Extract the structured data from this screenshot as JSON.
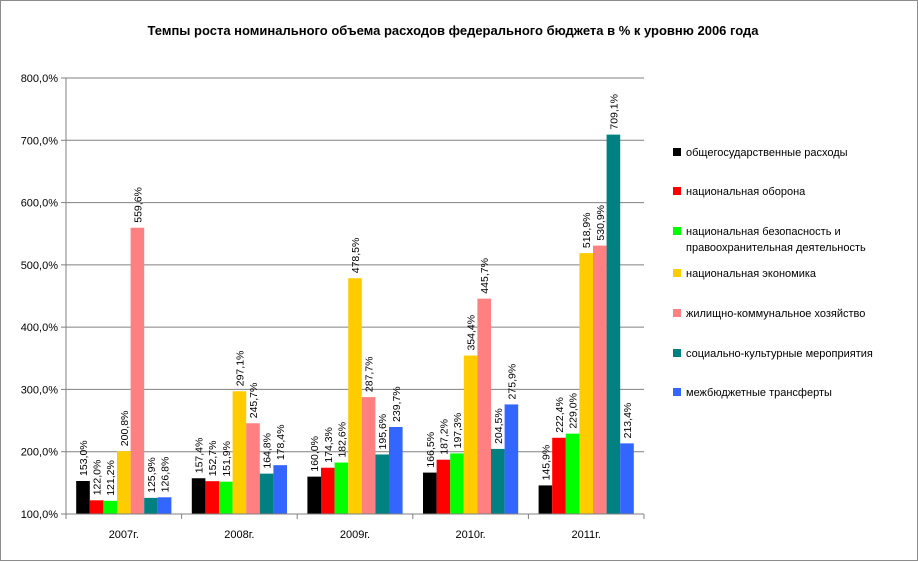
{
  "chart_data": {
    "type": "bar",
    "title": "Темпы роста номинального объема расходов федерального бюджета в % к уровню 2006 года",
    "xlabel": "",
    "ylabel": "",
    "ylim": [
      100,
      800
    ],
    "yticks": [
      "100,0%",
      "200,0%",
      "300,0%",
      "400,0%",
      "500,0%",
      "600,0%",
      "700,0%",
      "800,0%"
    ],
    "ytick_values": [
      100,
      200,
      300,
      400,
      500,
      600,
      700,
      800
    ],
    "grid": "horizontal",
    "legend_position": "right",
    "categories": [
      "2007г.",
      "2008г.",
      "2009г.",
      "2010г.",
      "2011г."
    ],
    "series": [
      {
        "name": "общегосударственные расходы",
        "legend_lines": [
          "общегосударственные расходы"
        ],
        "color": "#000000",
        "values": [
          153.0,
          157.4,
          160.0,
          166.5,
          145.9
        ],
        "labels": [
          "153,0%",
          "157,4%",
          "160,0%",
          "166,5%",
          "145,9%"
        ]
      },
      {
        "name": "национальная оборона",
        "legend_lines": [
          "национальная оборона"
        ],
        "color": "#ff0000",
        "values": [
          122.0,
          152.7,
          174.3,
          187.2,
          222.4
        ],
        "labels": [
          "122,0%",
          "152,7%",
          "174,3%",
          "187,2%",
          "222,4%"
        ]
      },
      {
        "name": "национальная безопасность и правоохранительная деятельность",
        "legend_lines": [
          "национальная безопасность и",
          "правоохранительная деятельность"
        ],
        "color": "#00ff00",
        "values": [
          121.2,
          151.9,
          182.6,
          197.3,
          229.0
        ],
        "labels": [
          "121,2%",
          "151,9%",
          "182,6%",
          "197,3%",
          "229,0%"
        ]
      },
      {
        "name": "национальная экономика",
        "legend_lines": [
          "национальная экономика"
        ],
        "color": "#ffcc00",
        "values": [
          200.8,
          297.1,
          478.5,
          354.4,
          518.9
        ],
        "labels": [
          "200,8%",
          "297,1%",
          "478,5%",
          "354,4%",
          "518,9%"
        ]
      },
      {
        "name": "жилищно-коммунальное хозяйство",
        "legend_lines": [
          "жилищно-коммунальное хозяйство"
        ],
        "color": "#ff8080",
        "values": [
          559.6,
          245.7,
          287.7,
          445.7,
          530.9
        ],
        "labels": [
          "559,6%",
          "245,7%",
          "287,7%",
          "445,7%",
          "530,9%"
        ]
      },
      {
        "name": "социально-культурные мероприятия",
        "legend_lines": [
          "социально-культурные мероприятия"
        ],
        "color": "#008080",
        "values": [
          125.9,
          164.8,
          195.6,
          204.5,
          709.1
        ],
        "labels": [
          "125,9%",
          "164,8%",
          "195,6%",
          "204,5%",
          "709,1%"
        ]
      },
      {
        "name": "межбюджетные трансферты",
        "legend_lines": [
          "межбюджетные трансферты"
        ],
        "color": "#3366ff",
        "values": [
          126.8,
          178.4,
          239.7,
          275.9,
          213.4
        ],
        "labels": [
          "126,8%",
          "178,4%",
          "239,7%",
          "275,9%",
          "213,4%"
        ]
      }
    ]
  }
}
